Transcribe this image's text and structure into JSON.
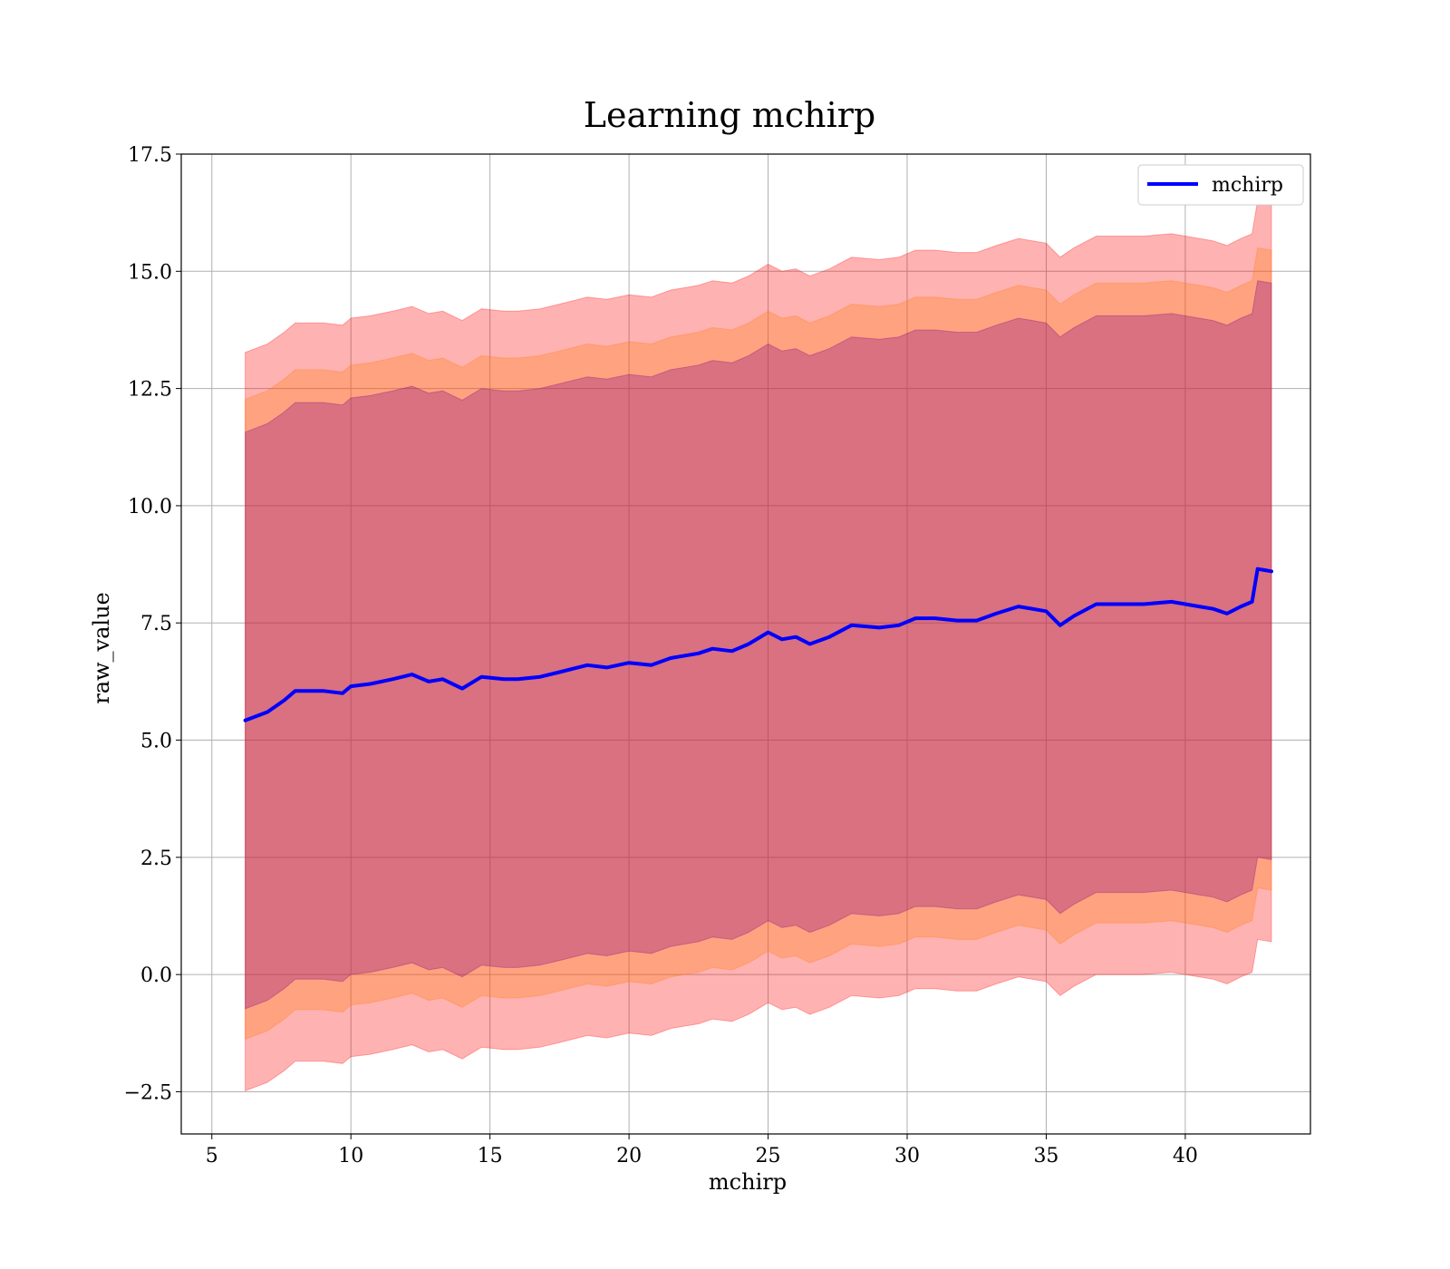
{
  "chart_data": {
    "type": "line",
    "title": "Learning mchirp",
    "xlabel": "mchirp",
    "ylabel": "raw_value",
    "xlim": [
      3.9,
      44.5
    ],
    "ylim": [
      -3.4,
      17.5
    ],
    "grid": true,
    "legend": {
      "placement": "top-right",
      "entries": [
        "mchirp"
      ]
    },
    "x_ticks": [
      5,
      10,
      15,
      20,
      25,
      30,
      35,
      40
    ],
    "x_tick_labels": [
      "5",
      "10",
      "15",
      "20",
      "25",
      "30",
      "35",
      "40"
    ],
    "y_ticks": [
      -2.5,
      0.0,
      2.5,
      5.0,
      7.5,
      10.0,
      12.5,
      15.0,
      17.5
    ],
    "y_tick_labels": [
      "−2.5",
      "0.0",
      "2.5",
      "5.0",
      "7.5",
      "10.0",
      "12.5",
      "15.0",
      "17.5"
    ],
    "x": [
      6.2,
      7.0,
      7.6,
      8.0,
      9.0,
      9.7,
      10.0,
      10.7,
      11.5,
      12.2,
      12.8,
      13.3,
      14.0,
      14.7,
      15.5,
      16.0,
      16.8,
      17.5,
      18.5,
      19.2,
      20.0,
      20.8,
      21.5,
      22.5,
      23.0,
      23.7,
      24.3,
      25.0,
      25.5,
      26.0,
      26.5,
      27.2,
      28.0,
      29.0,
      29.7,
      30.3,
      31.0,
      31.8,
      32.5,
      33.2,
      34.0,
      35.0,
      35.5,
      36.0,
      36.8,
      37.5,
      38.5,
      39.5,
      40.5,
      41.0,
      41.5,
      42.0,
      42.4,
      42.6,
      43.1
    ],
    "series": [
      {
        "name": "mchirp",
        "color": "#0000ff",
        "values": [
          5.42,
          5.6,
          5.85,
          6.05,
          6.05,
          6.0,
          6.15,
          6.2,
          6.3,
          6.4,
          6.25,
          6.3,
          6.1,
          6.35,
          6.3,
          6.3,
          6.35,
          6.45,
          6.6,
          6.55,
          6.65,
          6.6,
          6.75,
          6.85,
          6.95,
          6.9,
          7.05,
          7.3,
          7.15,
          7.2,
          7.05,
          7.2,
          7.45,
          7.4,
          7.45,
          7.6,
          7.6,
          7.55,
          7.55,
          7.7,
          7.85,
          7.75,
          7.45,
          7.65,
          7.9,
          7.9,
          7.9,
          7.95,
          7.85,
          7.8,
          7.7,
          7.85,
          7.95,
          8.65,
          8.6
        ]
      }
    ],
    "bands": [
      {
        "color": "#ff0000",
        "opacity": 0.3,
        "lower_offset": -7.9,
        "upper_offset": 7.85
      },
      {
        "color": "#ff7f0e",
        "opacity": 0.3,
        "lower_offset": -6.8,
        "upper_offset": 6.85
      },
      {
        "color": "#800080",
        "opacity": 0.3,
        "lower_offset": -6.15,
        "upper_offset": 6.15
      }
    ]
  }
}
